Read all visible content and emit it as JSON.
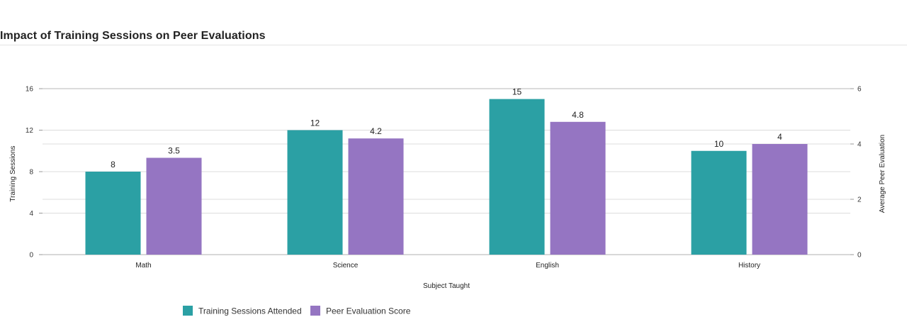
{
  "chart_data": {
    "type": "bar",
    "title": "Impact of Training Sessions on Peer Evaluations",
    "xlabel": "Subject Taught",
    "categories": [
      "Math",
      "Science",
      "English",
      "History"
    ],
    "y_left": {
      "label": "Training Sessions",
      "range": [
        0,
        16
      ],
      "ticks": [
        0,
        4,
        8,
        12,
        16
      ]
    },
    "y_right": {
      "label": "Average Peer Evaluation",
      "range": [
        0,
        6
      ],
      "ticks": [
        0,
        2,
        4,
        6
      ]
    },
    "series": [
      {
        "name": "Training Sessions Attended",
        "axis": "left",
        "color": "#2ba0a4",
        "values": [
          8,
          12,
          15,
          10
        ],
        "labels": [
          "8",
          "12",
          "15",
          "10"
        ]
      },
      {
        "name": "Peer Evaluation Score",
        "axis": "right",
        "color": "#9575c2",
        "values": [
          3.5,
          4.2,
          4.8,
          4
        ],
        "labels": [
          "3.5",
          "4.2",
          "4.8",
          "4"
        ]
      }
    ],
    "grid": true,
    "legend": "bottom-left"
  }
}
